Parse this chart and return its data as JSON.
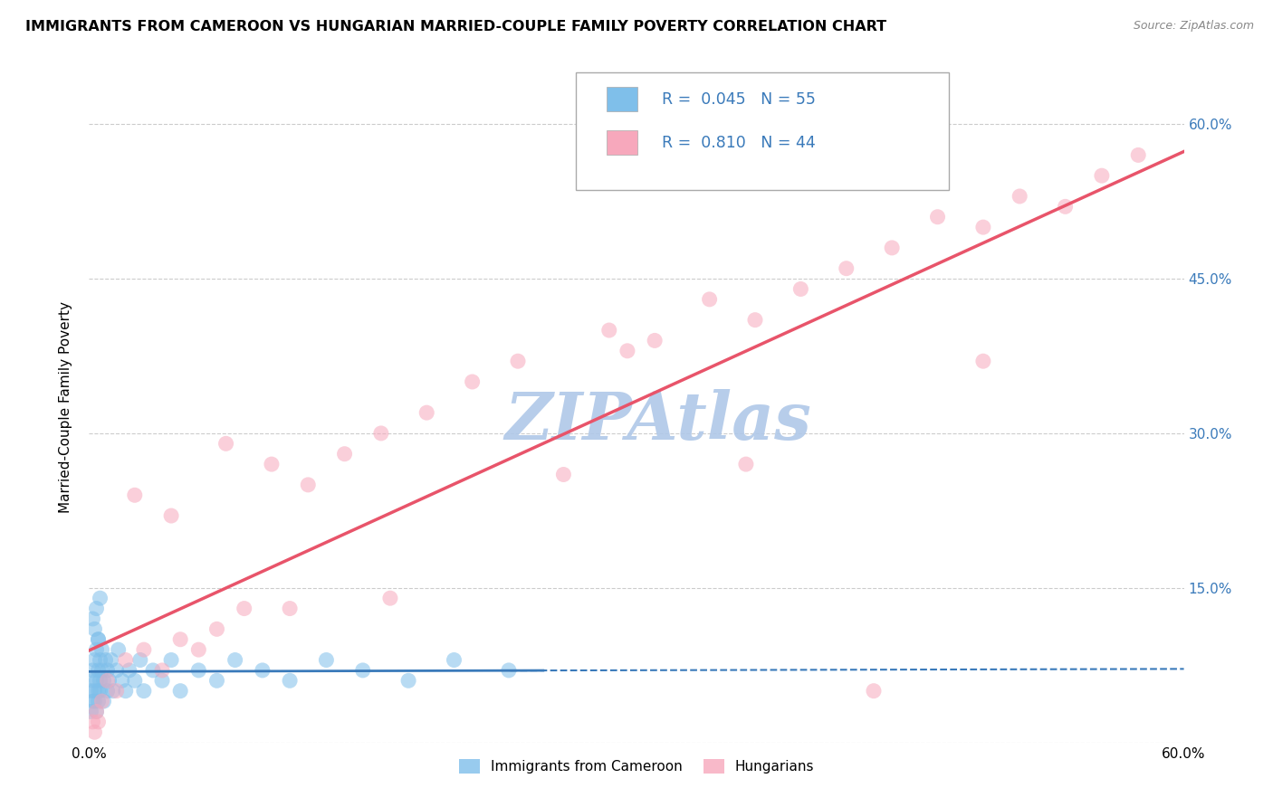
{
  "title": "IMMIGRANTS FROM CAMEROON VS HUNGARIAN MARRIED-COUPLE FAMILY POVERTY CORRELATION CHART",
  "source": "Source: ZipAtlas.com",
  "ylabel": "Married-Couple Family Poverty",
  "legend_label1": "Immigrants from Cameroon",
  "legend_label2": "Hungarians",
  "R1": "0.045",
  "N1": "55",
  "R2": "0.810",
  "N2": "44",
  "blue_color": "#7fbfea",
  "pink_color": "#f7a8bc",
  "blue_line_color": "#3a7aba",
  "pink_line_color": "#e8546a",
  "text_color": "#3a7aba",
  "watermark_text": "ZIPAtlas",
  "watermark_color": "#b0c8e8",
  "xlim": [
    0.0,
    0.6
  ],
  "ylim": [
    0.0,
    0.65
  ],
  "yticks": [
    0.0,
    0.15,
    0.3,
    0.45,
    0.6
  ],
  "ytick_labels": [
    "",
    "15.0%",
    "30.0%",
    "45.0%",
    "60.0%"
  ],
  "blue_scatter_x": [
    0.001,
    0.001,
    0.002,
    0.002,
    0.002,
    0.003,
    0.003,
    0.003,
    0.004,
    0.004,
    0.004,
    0.005,
    0.005,
    0.005,
    0.005,
    0.006,
    0.006,
    0.006,
    0.007,
    0.007,
    0.008,
    0.008,
    0.009,
    0.01,
    0.01,
    0.011,
    0.012,
    0.013,
    0.015,
    0.016,
    0.018,
    0.02,
    0.022,
    0.025,
    0.028,
    0.03,
    0.035,
    0.04,
    0.045,
    0.05,
    0.06,
    0.07,
    0.08,
    0.095,
    0.11,
    0.13,
    0.15,
    0.175,
    0.2,
    0.23,
    0.002,
    0.003,
    0.004,
    0.005,
    0.006
  ],
  "blue_scatter_y": [
    0.05,
    0.03,
    0.07,
    0.04,
    0.06,
    0.08,
    0.05,
    0.04,
    0.09,
    0.06,
    0.03,
    0.07,
    0.05,
    0.1,
    0.04,
    0.06,
    0.08,
    0.05,
    0.07,
    0.09,
    0.06,
    0.04,
    0.08,
    0.05,
    0.07,
    0.06,
    0.08,
    0.05,
    0.07,
    0.09,
    0.06,
    0.05,
    0.07,
    0.06,
    0.08,
    0.05,
    0.07,
    0.06,
    0.08,
    0.05,
    0.07,
    0.06,
    0.08,
    0.07,
    0.06,
    0.08,
    0.07,
    0.06,
    0.08,
    0.07,
    0.12,
    0.11,
    0.13,
    0.1,
    0.14
  ],
  "pink_scatter_x": [
    0.002,
    0.003,
    0.004,
    0.005,
    0.007,
    0.01,
    0.015,
    0.02,
    0.03,
    0.04,
    0.05,
    0.06,
    0.07,
    0.085,
    0.1,
    0.12,
    0.14,
    0.16,
    0.185,
    0.21,
    0.235,
    0.26,
    0.285,
    0.31,
    0.34,
    0.365,
    0.39,
    0.415,
    0.44,
    0.465,
    0.49,
    0.51,
    0.535,
    0.555,
    0.575,
    0.025,
    0.045,
    0.075,
    0.11,
    0.165,
    0.295,
    0.36,
    0.43,
    0.49
  ],
  "pink_scatter_y": [
    0.02,
    0.01,
    0.03,
    0.02,
    0.04,
    0.06,
    0.05,
    0.08,
    0.09,
    0.07,
    0.1,
    0.09,
    0.11,
    0.13,
    0.27,
    0.25,
    0.28,
    0.3,
    0.32,
    0.35,
    0.37,
    0.26,
    0.4,
    0.39,
    0.43,
    0.41,
    0.44,
    0.46,
    0.48,
    0.51,
    0.5,
    0.53,
    0.52,
    0.55,
    0.57,
    0.24,
    0.22,
    0.29,
    0.13,
    0.14,
    0.38,
    0.27,
    0.05,
    0.37
  ],
  "background_color": "#ffffff",
  "grid_color": "#cccccc"
}
